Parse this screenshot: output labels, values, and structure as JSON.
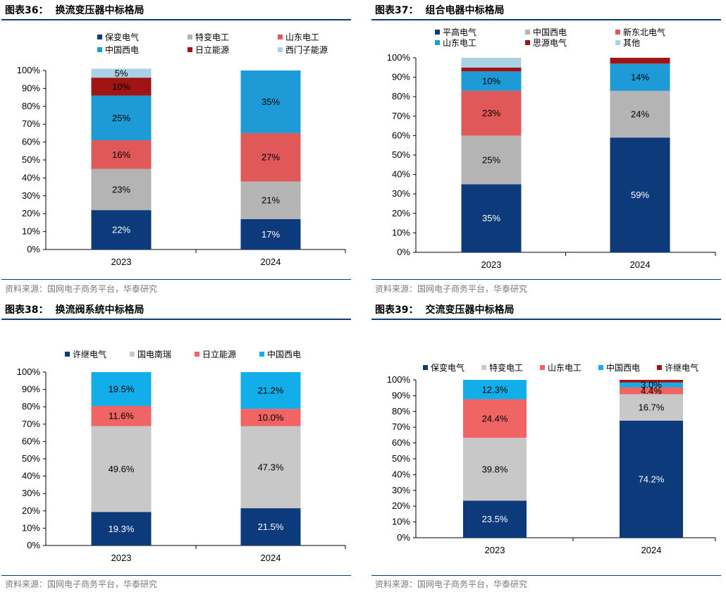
{
  "source_text": "资料来源：国网电子商务平台，华泰研究",
  "chart_data": [
    {
      "type": "bar",
      "stacked": true,
      "label": "图表36：",
      "title": "换流变压器中标格局",
      "categories": [
        "2023",
        "2024"
      ],
      "yticks": [
        "0%",
        "10%",
        "20%",
        "30%",
        "40%",
        "50%",
        "60%",
        "70%",
        "80%",
        "90%",
        "100%"
      ],
      "ylim": [
        0,
        100
      ],
      "legend_columns": 3,
      "series": [
        {
          "name": "保变电气",
          "color": "#0d3a7a",
          "values": [
            22,
            17
          ],
          "labels": [
            "22%",
            "17%"
          ],
          "label_color": "#ffffff"
        },
        {
          "name": "特变电工",
          "color": "#b4b4b4",
          "values": [
            23,
            21
          ],
          "labels": [
            "23%",
            "21%"
          ],
          "label_color": "#000000"
        },
        {
          "name": "山东电工",
          "color": "#e05858",
          "values": [
            16,
            27
          ],
          "labels": [
            "16%",
            "27%"
          ],
          "label_color": "#000000"
        },
        {
          "name": "中国西电",
          "color": "#1e9bd7",
          "values": [
            25,
            35
          ],
          "labels": [
            "25%",
            "35%"
          ],
          "label_color": "#000000"
        },
        {
          "name": "日立能源",
          "color": "#a01414",
          "values": [
            10,
            0
          ],
          "labels": [
            "10%",
            ""
          ],
          "label_color": "#000000"
        },
        {
          "name": "西门子能源",
          "color": "#a9d3e4",
          "values": [
            5,
            0
          ],
          "labels": [
            "5%",
            ""
          ],
          "label_color": "#000000"
        }
      ]
    },
    {
      "type": "bar",
      "stacked": true,
      "label": "图表37：",
      "title": "组合电器中标格局",
      "categories": [
        "2023",
        "2024"
      ],
      "yticks": [
        "0%",
        "10%",
        "20%",
        "30%",
        "40%",
        "50%",
        "60%",
        "70%",
        "80%",
        "90%",
        "100%"
      ],
      "ylim": [
        0,
        100
      ],
      "legend_columns": 3,
      "series": [
        {
          "name": "平高电气",
          "color": "#0d3a7a",
          "values": [
            35,
            59
          ],
          "labels": [
            "35%",
            "59%"
          ],
          "label_color": "#ffffff"
        },
        {
          "name": "中国西电",
          "color": "#b4b4b4",
          "values": [
            25,
            24
          ],
          "labels": [
            "25%",
            "24%"
          ],
          "label_color": "#000000"
        },
        {
          "name": "新东北电气",
          "color": "#e05858",
          "values": [
            23,
            0
          ],
          "labels": [
            "23%",
            ""
          ],
          "label_color": "#000000"
        },
        {
          "name": "山东电工",
          "color": "#1e9bd7",
          "values": [
            10,
            14
          ],
          "labels": [
            "10%",
            "14%"
          ],
          "label_color": "#000000"
        },
        {
          "name": "思源电气",
          "color": "#a01414",
          "values": [
            2,
            3
          ],
          "labels": [
            "",
            ""
          ],
          "label_color": "#000000"
        },
        {
          "name": "其他",
          "color": "#a9d3e4",
          "values": [
            5,
            0
          ],
          "labels": [
            "",
            ""
          ],
          "label_color": "#000000"
        }
      ]
    },
    {
      "type": "bar",
      "stacked": true,
      "label": "图表38：",
      "title": "换流阀系统中标格局",
      "categories": [
        "2023",
        "2024"
      ],
      "yticks": [
        "0%",
        "10%",
        "20%",
        "30%",
        "40%",
        "50%",
        "60%",
        "70%",
        "80%",
        "90%",
        "100%"
      ],
      "ylim": [
        0,
        100
      ],
      "legend_columns": 4,
      "series": [
        {
          "name": "许继电气",
          "color": "#0d3a7a",
          "values": [
            19.3,
            21.5
          ],
          "labels": [
            "19.3%",
            "21.5%"
          ],
          "label_color": "#ffffff"
        },
        {
          "name": "国电南瑞",
          "color": "#c8c8c8",
          "values": [
            49.6,
            47.3
          ],
          "labels": [
            "49.6%",
            "47.3%"
          ],
          "label_color": "#000000"
        },
        {
          "name": "日立能源",
          "color": "#f06464",
          "values": [
            11.6,
            10.0
          ],
          "labels": [
            "11.6%",
            "10.0%"
          ],
          "label_color": "#000000"
        },
        {
          "name": "中国西电",
          "color": "#12aee9",
          "values": [
            19.5,
            21.2
          ],
          "labels": [
            "19.5%",
            "21.2%"
          ],
          "label_color": "#000000"
        }
      ]
    },
    {
      "type": "bar",
      "stacked": true,
      "label": "图表39：",
      "title": "交流变压器中标格局",
      "categories": [
        "2023",
        "2024"
      ],
      "yticks": [
        "0%",
        "10%",
        "20%",
        "30%",
        "40%",
        "50%",
        "60%",
        "70%",
        "80%",
        "90%",
        "100%"
      ],
      "ylim": [
        0,
        100
      ],
      "legend_columns": 5,
      "series": [
        {
          "name": "保变电气",
          "color": "#0d3a7a",
          "values": [
            23.5,
            74.2
          ],
          "labels": [
            "23.5%",
            "74.2%"
          ],
          "label_color": "#ffffff"
        },
        {
          "name": "特变电工",
          "color": "#c8c8c8",
          "values": [
            39.8,
            16.7
          ],
          "labels": [
            "39.8%",
            "16.7%"
          ],
          "label_color": "#000000"
        },
        {
          "name": "山东电工",
          "color": "#f06464",
          "values": [
            24.4,
            4.4
          ],
          "labels": [
            "24.4%",
            "4.4%"
          ],
          "label_color": "#000000"
        },
        {
          "name": "中国西电",
          "color": "#12aee9",
          "values": [
            12.3,
            3.0
          ],
          "labels": [
            "12.3%",
            "3.0%"
          ],
          "label_color": "#000000"
        },
        {
          "name": "许继电气",
          "color": "#a01414",
          "values": [
            0,
            1.7
          ],
          "labels": [
            "",
            ""
          ],
          "label_color": "#000000"
        }
      ]
    }
  ]
}
